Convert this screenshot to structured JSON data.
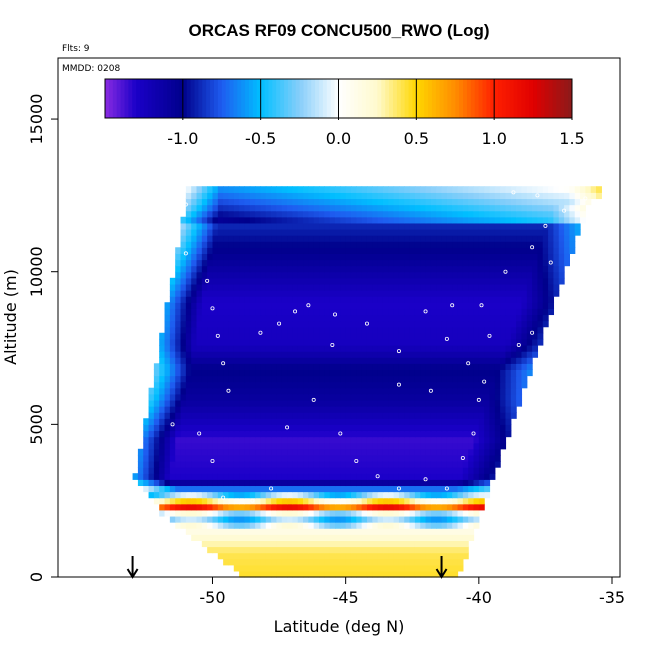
{
  "chart_data": {
    "type": "heatmap",
    "title": "ORCAS RF09 CONCU500_RWO (Log)",
    "annotations": [
      "Flts: 9",
      "MMDD: 0208"
    ],
    "xlabel": "Latitude (deg N)",
    "ylabel": "Altitude (m)",
    "xlim": [
      -55.8,
      -34.7
    ],
    "ylim": [
      0,
      17000
    ],
    "x_ticks": [
      -50,
      -45,
      -40,
      -35
    ],
    "x_tick_labels": [
      "-50",
      "-45",
      "-40",
      "-35"
    ],
    "y_ticks": [
      0,
      5000,
      10000,
      15000
    ],
    "y_tick_labels": [
      "0",
      "5000",
      "10000",
      "15000"
    ],
    "colorbar": {
      "range": [
        -1.5,
        1.5
      ],
      "ticks": [
        -1.0,
        -0.5,
        0.0,
        0.5,
        1.0,
        1.5
      ],
      "tick_labels": [
        "-1.0",
        "-0.5",
        "0.0",
        "0.5",
        "1.0",
        "1.5"
      ],
      "stops": [
        {
          "v": -1.5,
          "c": "#8a2be2"
        },
        {
          "v": -1.3,
          "c": "#1a00c8"
        },
        {
          "v": -1.0,
          "c": "#00008b"
        },
        {
          "v": -0.75,
          "c": "#1e5cf0"
        },
        {
          "v": -0.5,
          "c": "#00bfff"
        },
        {
          "v": -0.25,
          "c": "#87cefa"
        },
        {
          "v": 0.0,
          "c": "#ffffff"
        },
        {
          "v": 0.25,
          "c": "#fffacd"
        },
        {
          "v": 0.5,
          "c": "#ffd700"
        },
        {
          "v": 0.75,
          "c": "#ff8c00"
        },
        {
          "v": 1.0,
          "c": "#ff2000"
        },
        {
          "v": 1.25,
          "c": "#e00000"
        },
        {
          "v": 1.5,
          "c": "#8b1a1a"
        }
      ]
    },
    "domain": {
      "lat_min": -53.0,
      "lat_max": -35.4,
      "alt_min": 0,
      "alt_max": 12700
    },
    "field": {
      "lat_step": 0.2,
      "alt_step": 200,
      "layers": [
        {
          "alt": 0,
          "v": 0.45
        },
        {
          "alt": 800,
          "v": 0.4
        },
        {
          "alt": 1600,
          "v": 0.1
        },
        {
          "alt": 2000,
          "v": -0.5
        },
        {
          "alt": 2300,
          "v": 0.9
        },
        {
          "alt": 2700,
          "v": -0.3
        },
        {
          "alt": 3200,
          "v": -1.3
        },
        {
          "alt": 4500,
          "v": -1.35
        },
        {
          "alt": 5800,
          "v": -1.1
        },
        {
          "alt": 6800,
          "v": -1.0
        },
        {
          "alt": 7600,
          "v": -1.25
        },
        {
          "alt": 9000,
          "v": -1.3
        },
        {
          "alt": 10500,
          "v": -1.05
        },
        {
          "alt": 11500,
          "v": -0.9
        },
        {
          "alt": 12200,
          "v": -0.6
        },
        {
          "alt": 12700,
          "v": -0.4
        }
      ]
    },
    "flight_points": [
      [
        -51.0,
        12200
      ],
      [
        -51.5,
        11800
      ],
      [
        -51.8,
        11300
      ],
      [
        -51.0,
        10600
      ],
      [
        -50.2,
        9700
      ],
      [
        -50.0,
        8800
      ],
      [
        -49.8,
        7900
      ],
      [
        -49.6,
        7000
      ],
      [
        -49.4,
        6100
      ],
      [
        -52.4,
        8900
      ],
      [
        -52.8,
        6800
      ],
      [
        -53.2,
        5500
      ],
      [
        -51.5,
        5000
      ],
      [
        -50.5,
        4700
      ],
      [
        -50.0,
        3800
      ],
      [
        -49.6,
        2600
      ],
      [
        -48.5,
        2500
      ],
      [
        -47.8,
        2900
      ],
      [
        -47.2,
        4900
      ],
      [
        -46.2,
        5800
      ],
      [
        -45.2,
        4700
      ],
      [
        -44.6,
        3800
      ],
      [
        -43.8,
        3300
      ],
      [
        -43.0,
        2900
      ],
      [
        -42.0,
        3200
      ],
      [
        -41.2,
        2900
      ],
      [
        -40.6,
        3900
      ],
      [
        -40.2,
        4700
      ],
      [
        -40.0,
        5800
      ],
      [
        -40.4,
        7000
      ],
      [
        -41.2,
        7800
      ],
      [
        -42.0,
        8700
      ],
      [
        -43.0,
        7400
      ],
      [
        -44.2,
        8300
      ],
      [
        -45.4,
        8600
      ],
      [
        -46.4,
        8900
      ],
      [
        -46.9,
        8700
      ],
      [
        -47.5,
        8300
      ],
      [
        -48.2,
        8000
      ],
      [
        -45.5,
        7600
      ],
      [
        -43.0,
        6300
      ],
      [
        -41.8,
        6100
      ],
      [
        -39.9,
        8900
      ],
      [
        -39.6,
        7900
      ],
      [
        -38.0,
        8000
      ],
      [
        -39.0,
        10000
      ],
      [
        -38.0,
        10800
      ],
      [
        -37.5,
        11500
      ],
      [
        -36.8,
        12000
      ],
      [
        -36.0,
        12400
      ],
      [
        -37.8,
        12500
      ],
      [
        -38.7,
        12600
      ],
      [
        -41.0,
        8900
      ],
      [
        -39.8,
        6400
      ],
      [
        -38.5,
        7600
      ],
      [
        -37.3,
        10300
      ]
    ],
    "arrows_lat": [
      -53.0,
      -41.4
    ]
  }
}
